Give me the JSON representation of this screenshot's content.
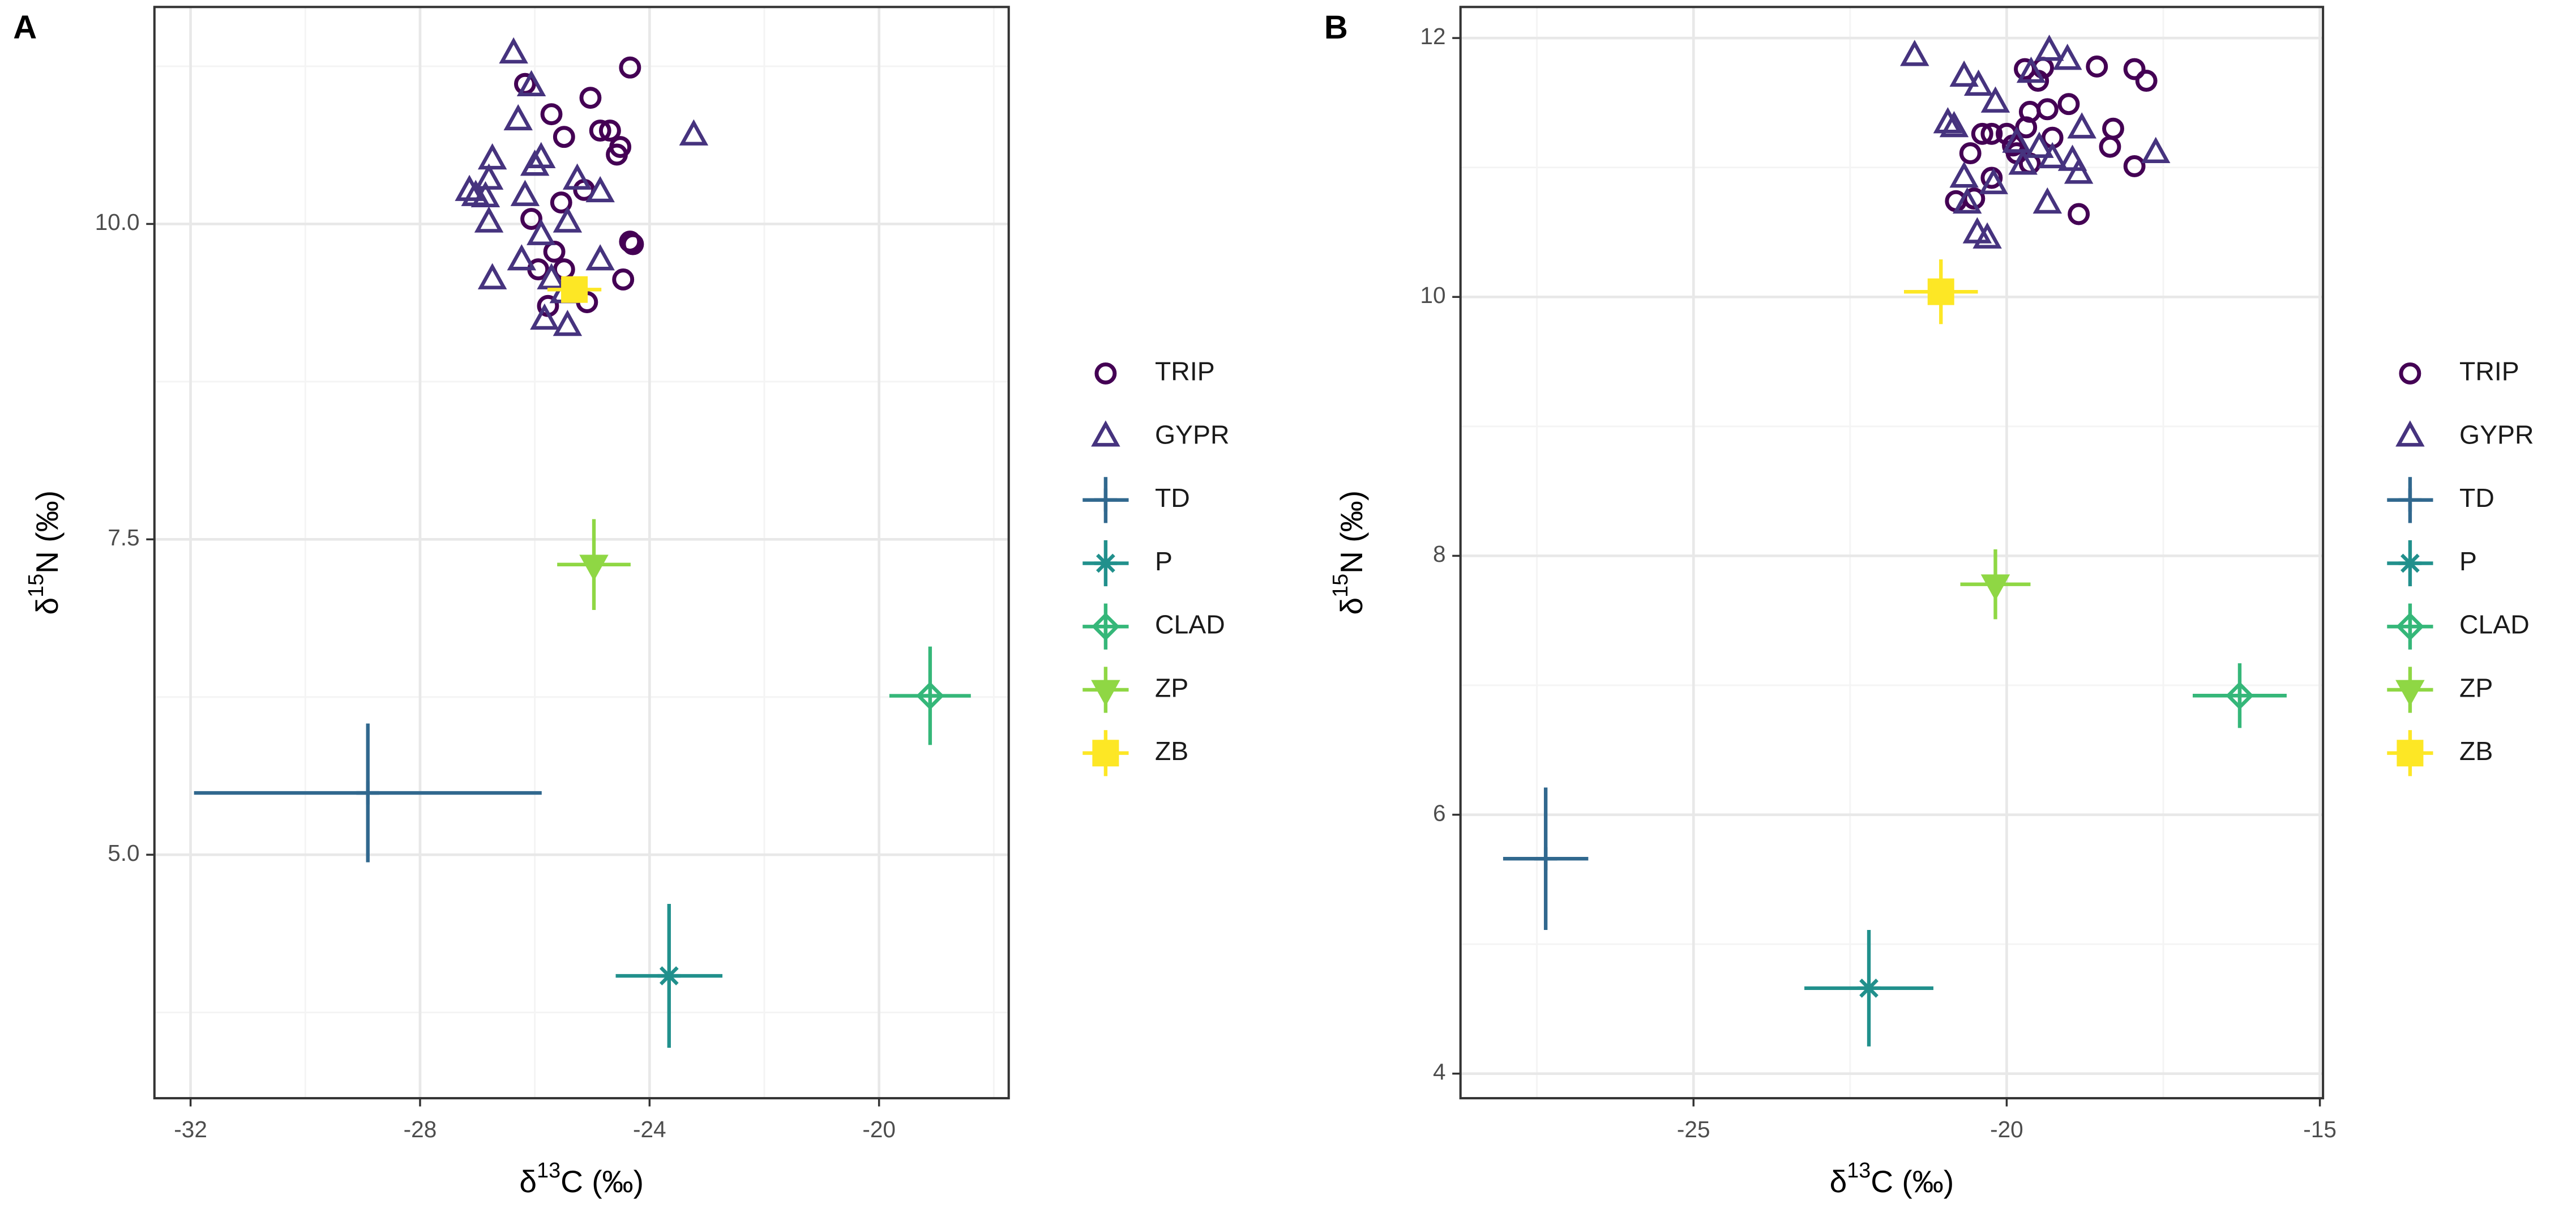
{
  "chart_data": [
    {
      "type": "scatter",
      "panel_label": "A",
      "xlabel": "δ13C (‰)",
      "ylabel": "δ15N (‰)",
      "xlim": [
        -32.63,
        -17.74
      ],
      "ylim": [
        3.07,
        11.72
      ],
      "xticks": [
        -32,
        -28,
        -24,
        -20
      ],
      "yticks": [
        {
          "value": 5,
          "label": "5.0"
        },
        7.5,
        {
          "value": 10,
          "label": "10.0"
        }
      ],
      "grid": true,
      "minor_grid": true,
      "legend": "right",
      "series": [
        {
          "name": "TRIP",
          "color": "#440154",
          "marker": "circle",
          "x": [
            -24.34,
            -26.17,
            -25.03,
            -25.71,
            -25.49,
            -24.86,
            -24.69,
            -24.51,
            -24.57,
            -24.34,
            -24.29,
            -26.06,
            -25.54,
            -25.14,
            -25.66,
            -25.94,
            -25.49,
            -24.46,
            -25.77,
            -25.09
          ],
          "values": [
            11.24,
            11.11,
            11.0,
            10.87,
            10.69,
            10.74,
            10.74,
            10.61,
            10.55,
            9.86,
            9.84,
            10.04,
            10.17,
            10.27,
            9.78,
            9.64,
            9.64,
            9.56,
            9.35,
            9.38
          ]
        },
        {
          "name": "GYPR",
          "color": "#46337e",
          "marker": "triangle",
          "x": [
            -26.37,
            -26.06,
            -26.29,
            -23.23,
            -25.89,
            -26.74,
            -26.0,
            -26.8,
            -27.14,
            -26.86,
            -27.03,
            -26.17,
            -25.26,
            -24.86,
            -25.43,
            -26.8,
            -25.89,
            -26.23,
            -24.86,
            -25.71,
            -26.74,
            -25.49,
            -25.83,
            -25.43
          ],
          "values": [
            11.35,
            11.09,
            10.82,
            10.7,
            10.52,
            10.51,
            10.46,
            10.35,
            10.26,
            10.21,
            10.22,
            10.22,
            10.35,
            10.25,
            10.01,
            10.01,
            9.91,
            9.71,
            9.71,
            9.56,
            9.56,
            9.45,
            9.24,
            9.19
          ]
        },
        {
          "name": "TD",
          "color": "#31688e",
          "marker": "plus",
          "x": [
            -28.91
          ],
          "values": [
            5.49
          ],
          "xerr": [
            3.03
          ],
          "yerr": [
            0.55
          ]
        },
        {
          "name": "P",
          "color": "#21908c",
          "marker": "asterisk",
          "x": [
            -23.66
          ],
          "values": [
            4.04
          ],
          "xerr": [
            0.93
          ],
          "yerr": [
            0.57
          ]
        },
        {
          "name": "CLAD",
          "color": "#35b779",
          "marker": "diamondplus",
          "x": [
            -19.11
          ],
          "values": [
            6.26
          ],
          "xerr": [
            0.71
          ],
          "yerr": [
            0.39
          ]
        },
        {
          "name": "ZP",
          "color": "#8fd744",
          "marker": "triangledown",
          "x": [
            -24.97
          ],
          "values": [
            7.3
          ],
          "xerr": [
            0.64
          ],
          "yerr": [
            0.36
          ]
        },
        {
          "name": "ZB",
          "color": "#fde725",
          "marker": "square",
          "x": [
            -25.31
          ],
          "values": [
            9.48
          ],
          "xerr": [
            0.47
          ],
          "yerr": [
            0.1
          ]
        }
      ]
    },
    {
      "type": "scatter",
      "panel_label": "B",
      "xlabel": "δ13C (‰)",
      "ylabel": "δ15N (‰)",
      "xlim": [
        -28.72,
        -14.95
      ],
      "ylim": [
        3.81,
        12.24
      ],
      "xticks": [
        -25,
        -20,
        -15
      ],
      "yticks": [
        4,
        6,
        8,
        10,
        12
      ],
      "grid": true,
      "minor_grid": true,
      "legend": "right",
      "series": [
        {
          "name": "TRIP",
          "color": "#440154",
          "marker": "circle",
          "x": [
            -19.71,
            -19.42,
            -17.96,
            -17.77,
            -18.56,
            -19.5,
            -19.01,
            -19.35,
            -19.63,
            -18.3,
            -18.35,
            -17.96,
            -18.85,
            -20.39,
            -20.24,
            -20.0,
            -20.58,
            -19.84,
            -19.27,
            -19.63,
            -20.24,
            -20.52,
            -20.81,
            -19.69,
            -19.9
          ],
          "values": [
            11.76,
            11.77,
            11.76,
            11.67,
            11.78,
            11.67,
            11.49,
            11.45,
            11.43,
            11.3,
            11.16,
            11.01,
            10.64,
            11.26,
            11.26,
            11.26,
            11.11,
            11.11,
            11.23,
            11.03,
            10.92,
            10.76,
            10.74,
            11.31,
            11.17
          ]
        },
        {
          "name": "GYPR",
          "color": "#46337e",
          "marker": "triangle",
          "x": [
            -21.47,
            -19.32,
            -19.03,
            -19.61,
            -20.68,
            -20.45,
            -20.18,
            -20.94,
            -20.84,
            -18.8,
            -17.62,
            -19.84,
            -19.27,
            -18.95,
            -20.68,
            -18.85,
            -20.21,
            -19.35,
            -20.63,
            -20.47,
            -20.31,
            -19.74,
            -19.48
          ],
          "values": [
            11.86,
            11.9,
            11.83,
            11.73,
            11.7,
            11.63,
            11.5,
            11.34,
            11.31,
            11.3,
            11.11,
            11.19,
            11.07,
            11.05,
            10.92,
            10.95,
            10.87,
            10.72,
            10.72,
            10.49,
            10.45,
            11.02,
            11.15
          ]
        },
        {
          "name": "TD",
          "color": "#31688e",
          "marker": "plus",
          "x": [
            -27.36
          ],
          "values": [
            5.66
          ],
          "xerr": [
            0.68
          ],
          "yerr": [
            0.55
          ]
        },
        {
          "name": "P",
          "color": "#21908c",
          "marker": "asterisk",
          "x": [
            -22.2
          ],
          "values": [
            4.66
          ],
          "xerr": [
            1.03
          ],
          "yerr": [
            0.45
          ]
        },
        {
          "name": "CLAD",
          "color": "#35b779",
          "marker": "diamondplus",
          "x": [
            -16.28
          ],
          "values": [
            6.92
          ],
          "xerr": [
            0.75
          ],
          "yerr": [
            0.25
          ]
        },
        {
          "name": "ZP",
          "color": "#8fd744",
          "marker": "triangledown",
          "x": [
            -20.18
          ],
          "values": [
            7.78
          ],
          "xerr": [
            0.56
          ],
          "yerr": [
            0.27
          ]
        },
        {
          "name": "ZB",
          "color": "#fde725",
          "marker": "square",
          "x": [
            -21.05
          ],
          "values": [
            10.04
          ],
          "xerr": [
            0.59
          ],
          "yerr": [
            0.25
          ]
        }
      ]
    }
  ]
}
